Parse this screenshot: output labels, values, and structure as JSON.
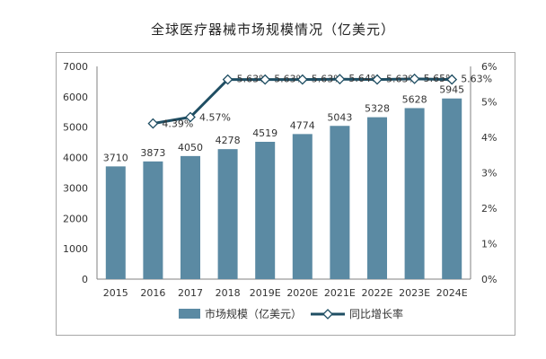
{
  "chart_data": {
    "type": "bar+line",
    "title": "全球医疗器械市场规模情况（亿美元）",
    "categories": [
      "2015",
      "2016",
      "2017",
      "2018",
      "2019E",
      "2020E",
      "2021E",
      "2022E",
      "2023E",
      "2024E"
    ],
    "series": [
      {
        "name": "市场规模（亿美元）",
        "type": "bar",
        "axis": "left",
        "color": "#5b8aa3",
        "values": [
          3710,
          3873,
          4050,
          4278,
          4519,
          4774,
          5043,
          5328,
          5628,
          5945
        ],
        "labels": [
          "3710",
          "3873",
          "4050",
          "4278",
          "4519",
          "4774",
          "5043",
          "5328",
          "5628",
          "5945"
        ]
      },
      {
        "name": "同比增长率",
        "type": "line",
        "axis": "right",
        "color": "#1f4e63",
        "values": [
          null,
          4.39,
          4.57,
          5.63,
          5.63,
          5.63,
          5.64,
          5.63,
          5.65,
          5.63
        ],
        "labels": [
          "",
          "4.39%",
          "4.57%",
          "5.63%",
          "5.63%",
          "5.63%",
          "5.64%",
          "5.63%",
          "5.65%",
          "5.63%"
        ]
      }
    ],
    "y_left": {
      "min": 0,
      "max": 7000,
      "step": 1000,
      "ticks": [
        "0",
        "1000",
        "2000",
        "3000",
        "4000",
        "5000",
        "6000",
        "7000"
      ]
    },
    "y_right": {
      "min": 0,
      "max": 6,
      "step": 1,
      "ticks": [
        "0%",
        "1%",
        "2%",
        "3%",
        "4%",
        "5%",
        "6%"
      ]
    },
    "legend": "bottom-center",
    "grid": false
  }
}
